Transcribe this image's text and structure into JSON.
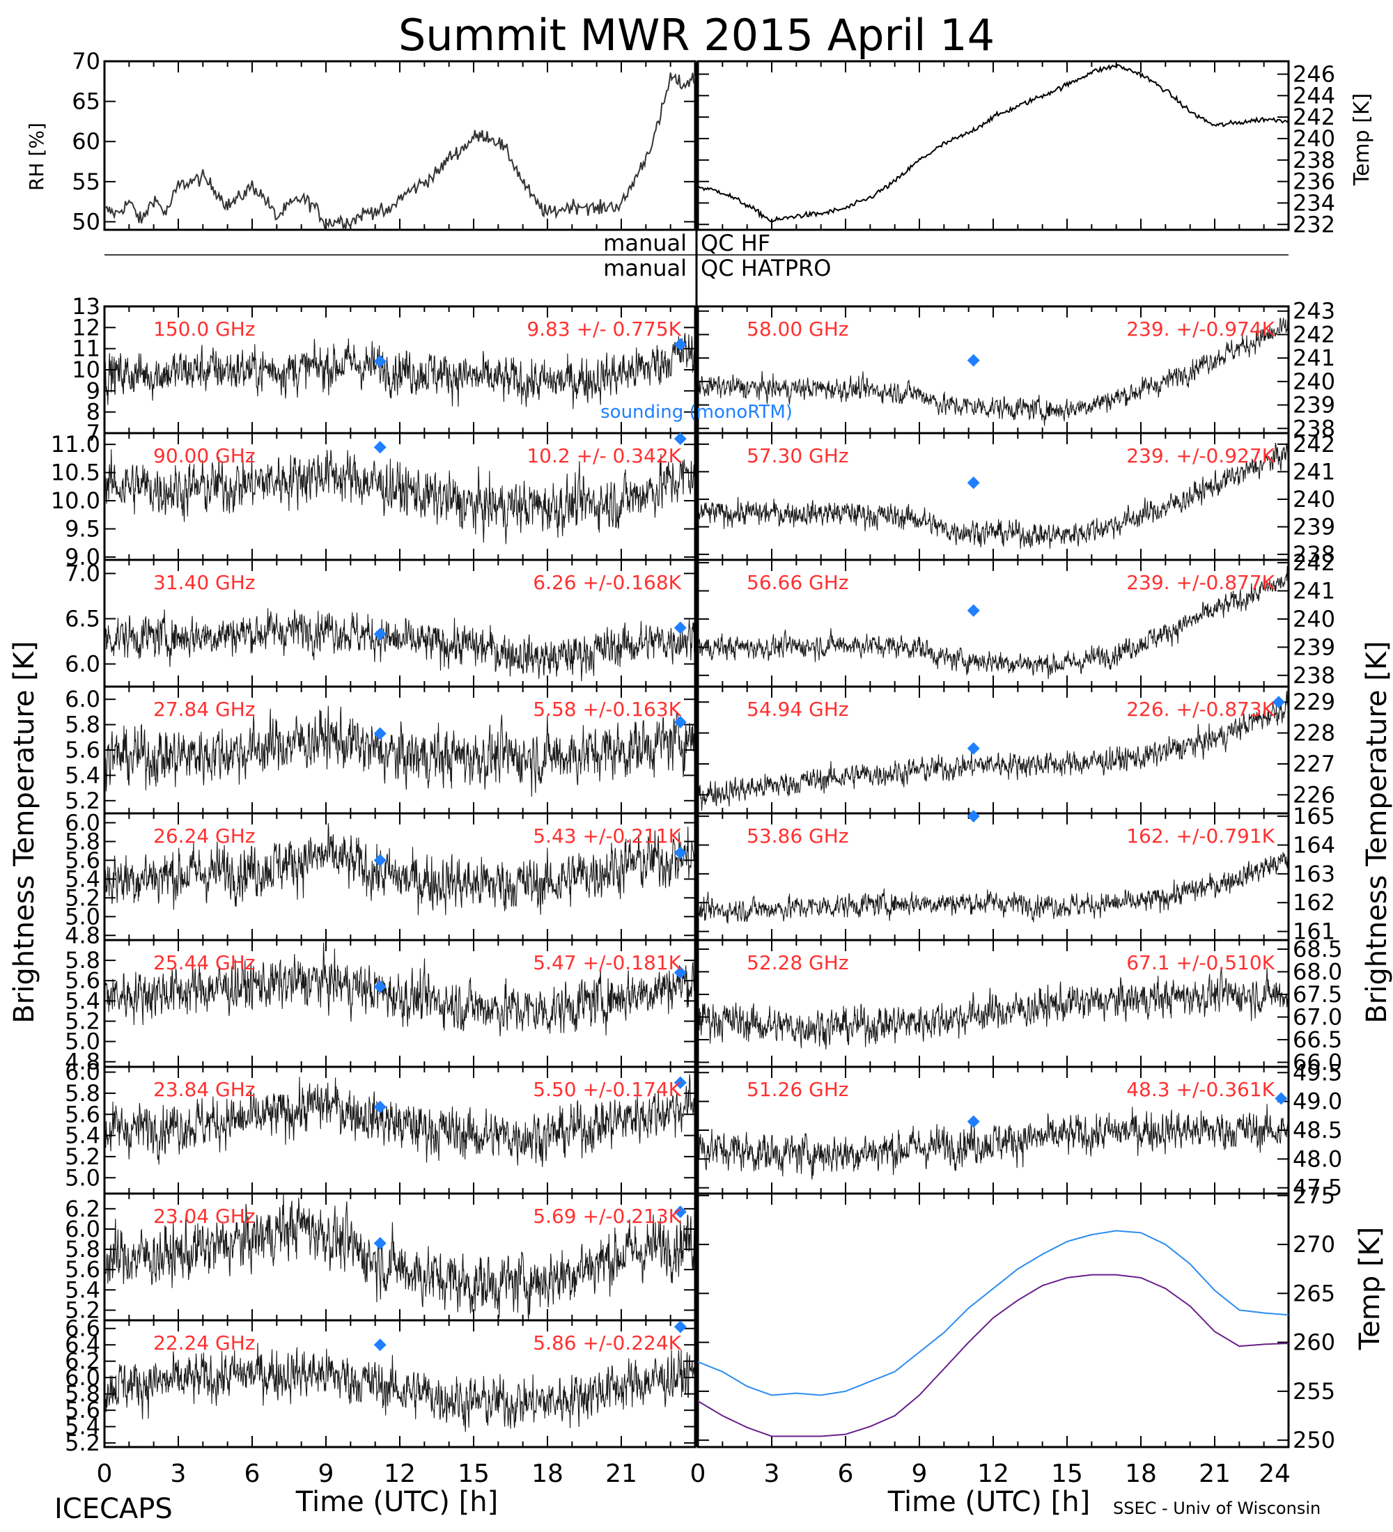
{
  "title": "Summit MWR 2015 April 14",
  "footer": {
    "left": "ICECAPS",
    "right": "SSEC - Univ of Wisconsin"
  },
  "colors": {
    "axes": "#000000",
    "annotation": "#ff3030",
    "sounding": "#1f7fff",
    "blackbody_hatpro": "#2a8cf0",
    "blackbody_hf": "#6a1f8a"
  },
  "qc": {
    "line1_left": "manual",
    "line1_right": "QC HF",
    "line2_left": "manual",
    "line2_right": "QC HATPRO"
  },
  "labels": {
    "rh_axis": "RH [%]",
    "temp_axis": "Temp [K]",
    "tb_axis_left": "Brightness Temperature [K]",
    "tb_axis_right": "Brightness Temperature [K]",
    "bb_axis": "Temp [K]",
    "time_axis_left": "Time (UTC) [h]",
    "time_axis_right": "Time (UTC) [h]",
    "sounding_legend": "sounding (monoRTM)"
  },
  "chart_data": [
    {
      "id": "rh",
      "type": "line",
      "ylabel": "RH [%]",
      "xlim": [
        0,
        24
      ],
      "ylim": [
        49,
        70
      ],
      "yticks": [
        "50",
        "55",
        "60",
        "65",
        "70"
      ],
      "x": [
        0,
        0.5,
        1,
        1.5,
        2,
        2.5,
        3,
        3.5,
        4,
        4.5,
        5,
        5.5,
        6,
        6.5,
        7,
        7.5,
        8,
        8.5,
        9,
        9.5,
        10,
        10.5,
        11,
        11.5,
        12,
        12.5,
        13,
        13.5,
        14,
        14.5,
        15,
        15.5,
        16,
        16.5,
        17,
        17.5,
        18,
        18.5,
        19,
        19.5,
        20,
        20.5,
        21,
        21.5,
        22,
        22.5,
        23,
        23.5,
        24
      ],
      "y": [
        51.5,
        51,
        52.5,
        50,
        53,
        51,
        54.5,
        55,
        55.5,
        54,
        52,
        53,
        54.5,
        53,
        50.5,
        52,
        53,
        52,
        49.8,
        50.2,
        50,
        51,
        51.5,
        51,
        53,
        54,
        55,
        56,
        58,
        59,
        60.5,
        60.8,
        60,
        58,
        55,
        52.5,
        51,
        51.5,
        52,
        52,
        51.5,
        52,
        52,
        55,
        58,
        62,
        68,
        67,
        68
      ]
    },
    {
      "id": "temp",
      "type": "line",
      "ylabel": "Temp [K]",
      "xlim": [
        0,
        24
      ],
      "ylim": [
        231.5,
        247.2
      ],
      "yticks": [
        "232",
        "234",
        "236",
        "238",
        "240",
        "242",
        "244",
        "246"
      ],
      "x": [
        0,
        1,
        2,
        3,
        4,
        5,
        6,
        7,
        8,
        9,
        10,
        11,
        12,
        13,
        14,
        15,
        16,
        17,
        18,
        19,
        20,
        21,
        22,
        23,
        24
      ],
      "y": [
        235.5,
        235,
        233.8,
        232.3,
        232.8,
        233,
        233.5,
        234.5,
        236,
        238,
        239.5,
        240.5,
        242,
        243,
        244,
        245,
        246.2,
        246.8,
        246,
        244.5,
        242.5,
        241.2,
        241.5,
        241.8,
        241.7
      ]
    },
    {
      "id": "150.0",
      "type": "scatter",
      "freq": "150.0 GHz",
      "stat": "9.83 +/- 0.775K",
      "ylim": [
        7,
        13
      ],
      "yticks": [
        "7",
        "8",
        "9",
        "10",
        "11",
        "12",
        "13"
      ],
      "x": [
        0,
        2,
        4,
        6,
        8,
        10,
        12,
        14,
        16,
        18,
        20,
        22,
        23.5
      ],
      "y": [
        9.8,
        9.8,
        10,
        10,
        10,
        10.3,
        10,
        9.8,
        9.5,
        9.4,
        9.6,
        10.1,
        10.8
      ],
      "noise": 0.775,
      "sounding": [
        [
          11.2,
          10.4
        ],
        [
          23.4,
          11.2
        ]
      ]
    },
    {
      "id": "90.00",
      "type": "scatter",
      "freq": "90.00 GHz",
      "stat": "10.2 +/- 0.342K",
      "ylim": [
        8.95,
        11.2
      ],
      "yticks": [
        "9.0",
        "9.5",
        "10.0",
        "10.5",
        "11.0"
      ],
      "x": [
        0,
        3,
        6,
        9,
        12,
        15,
        18,
        21,
        24
      ],
      "y": [
        10.3,
        10.2,
        10.3,
        10.5,
        10.2,
        9.9,
        9.9,
        10,
        10.5
      ],
      "noise": 0.342,
      "sounding": [
        [
          11.2,
          10.95
        ],
        [
          23.4,
          11.1
        ]
      ]
    },
    {
      "id": "31.40",
      "type": "scatter",
      "freq": "31.40 GHz",
      "stat": "6.26 +/-0.168K",
      "ylim": [
        5.75,
        7.15
      ],
      "yticks": [
        "6.0",
        "6.5",
        "7.0"
      ],
      "x": [
        0,
        3,
        6,
        9,
        12,
        15,
        18,
        21,
        24
      ],
      "y": [
        6.3,
        6.3,
        6.35,
        6.4,
        6.25,
        6.2,
        6.05,
        6.2,
        6.3
      ],
      "noise": 0.168,
      "sounding": [
        [
          11.2,
          6.33
        ],
        [
          23.4,
          6.4
        ]
      ]
    },
    {
      "id": "27.84",
      "type": "scatter",
      "freq": "27.84 GHz",
      "stat": "5.58 +/-0.163K",
      "ylim": [
        5.1,
        6.1
      ],
      "yticks": [
        "5.2",
        "5.4",
        "5.6",
        "5.8",
        "6.0"
      ],
      "x": [
        0,
        3,
        6,
        9,
        12,
        15,
        18,
        21,
        24
      ],
      "y": [
        5.55,
        5.55,
        5.6,
        5.7,
        5.55,
        5.55,
        5.55,
        5.6,
        5.7
      ],
      "noise": 0.163,
      "sounding": [
        [
          11.2,
          5.73
        ],
        [
          23.4,
          5.82
        ]
      ]
    },
    {
      "id": "26.24",
      "type": "scatter",
      "freq": "26.24 GHz",
      "stat": "5.43 +/-0.211K",
      "ylim": [
        4.75,
        6.1
      ],
      "yticks": [
        "4.8",
        "5.0",
        "5.2",
        "5.4",
        "5.6",
        "5.8",
        "6.0"
      ],
      "x": [
        0,
        3,
        6,
        9,
        12,
        15,
        18,
        21,
        24
      ],
      "y": [
        5.4,
        5.45,
        5.5,
        5.65,
        5.4,
        5.35,
        5.35,
        5.55,
        5.65
      ],
      "noise": 0.211,
      "sounding": [
        [
          11.2,
          5.6
        ],
        [
          23.4,
          5.68
        ]
      ]
    },
    {
      "id": "25.44",
      "type": "scatter",
      "freq": "25.44 GHz",
      "stat": "5.47 +/-0.181K",
      "ylim": [
        4.75,
        6.0
      ],
      "yticks": [
        "4.8",
        "5.0",
        "5.2",
        "5.4",
        "5.6",
        "5.8"
      ],
      "x": [
        0,
        3,
        6,
        9,
        12,
        15,
        18,
        21,
        24
      ],
      "y": [
        5.45,
        5.5,
        5.55,
        5.6,
        5.45,
        5.35,
        5.3,
        5.45,
        5.6
      ],
      "noise": 0.181,
      "sounding": [
        [
          11.2,
          5.54
        ],
        [
          23.4,
          5.68
        ]
      ]
    },
    {
      "id": "23.84",
      "type": "scatter",
      "freq": "23.84 GHz",
      "stat": "5.50 +/-0.174K",
      "ylim": [
        4.85,
        6.05
      ],
      "yticks": [
        "5.0",
        "5.2",
        "5.4",
        "5.6",
        "5.8",
        "6.0"
      ],
      "x": [
        0,
        3,
        6,
        9,
        12,
        15,
        18,
        21,
        24
      ],
      "y": [
        5.45,
        5.5,
        5.55,
        5.7,
        5.5,
        5.4,
        5.4,
        5.55,
        5.7
      ],
      "noise": 0.174,
      "sounding": [
        [
          11.2,
          5.67
        ],
        [
          23.4,
          5.9
        ]
      ]
    },
    {
      "id": "23.04",
      "type": "scatter",
      "freq": "23.04 GHz",
      "stat": "5.69 +/-0.213K",
      "ylim": [
        5.1,
        6.35
      ],
      "yticks": [
        "5.2",
        "5.4",
        "5.6",
        "5.8",
        "6.0",
        "6.2"
      ],
      "x": [
        0,
        3,
        6,
        8,
        9,
        11,
        13,
        15,
        18,
        21,
        24
      ],
      "y": [
        5.7,
        5.75,
        5.9,
        6.05,
        5.95,
        5.7,
        5.55,
        5.45,
        5.5,
        5.75,
        5.9
      ],
      "noise": 0.213,
      "sounding": [
        [
          11.2,
          5.86
        ],
        [
          23.4,
          6.17
        ]
      ]
    },
    {
      "id": "22.24",
      "type": "scatter",
      "freq": "22.24 GHz",
      "stat": "5.86 +/-0.224K",
      "ylim": [
        5.15,
        6.7
      ],
      "yticks": [
        "5.2",
        "5.4",
        "5.6",
        "5.8",
        "6.0",
        "6.2",
        "6.4",
        "6.6"
      ],
      "x": [
        0,
        3,
        6,
        9,
        12,
        15,
        18,
        21,
        24
      ],
      "y": [
        5.9,
        5.95,
        6.05,
        6.05,
        5.85,
        5.7,
        5.7,
        5.9,
        6.05
      ],
      "noise": 0.224,
      "sounding": [
        [
          11.2,
          6.4
        ],
        [
          23.4,
          6.62
        ]
      ]
    },
    {
      "id": "58.00",
      "type": "scatter",
      "freq": "58.00 GHz",
      "stat": "239. +/-0.974K",
      "ylim": [
        237.8,
        243.2
      ],
      "yticks": [
        "238",
        "239",
        "240",
        "241",
        "242",
        "243"
      ],
      "x": [
        0,
        3,
        6,
        9,
        10,
        12,
        14,
        15,
        17,
        19,
        21,
        24
      ],
      "y": [
        239.8,
        239.7,
        239.7,
        239.5,
        239,
        238.9,
        238.8,
        238.8,
        239.3,
        240,
        241,
        242.3
      ],
      "noise": 0.35,
      "sounding": [
        [
          11.2,
          240.9
        ]
      ]
    },
    {
      "id": "57.30",
      "type": "scatter",
      "freq": "57.30 GHz",
      "stat": "239. +/-0.927K",
      "ylim": [
        237.8,
        242.4
      ],
      "yticks": [
        "238",
        "239",
        "240",
        "241",
        "242"
      ],
      "x": [
        0,
        3,
        6,
        9,
        10,
        12,
        14,
        15,
        17,
        19,
        21,
        24
      ],
      "y": [
        239.5,
        239.5,
        239.5,
        239.3,
        238.9,
        238.8,
        238.7,
        238.7,
        239.1,
        239.7,
        240.5,
        241.7
      ],
      "noise": 0.33,
      "sounding": [
        [
          11.2,
          240.6
        ]
      ]
    },
    {
      "id": "56.66",
      "type": "scatter",
      "freq": "56.66 GHz",
      "stat": "239. +/-0.877K",
      "ylim": [
        237.6,
        242.1
      ],
      "yticks": [
        "238",
        "239",
        "240",
        "241",
        "242"
      ],
      "x": [
        0,
        3,
        6,
        9,
        10,
        12,
        14,
        15,
        17,
        19,
        21,
        24
      ],
      "y": [
        239,
        239,
        239.1,
        239,
        238.6,
        238.5,
        238.4,
        238.4,
        238.8,
        239.5,
        240.3,
        241.4
      ],
      "noise": 0.3,
      "sounding": [
        [
          11.2,
          240.3
        ]
      ]
    },
    {
      "id": "54.94",
      "type": "scatter",
      "freq": "54.94 GHz",
      "stat": "226. +/-0.873K",
      "ylim": [
        225.4,
        229.5
      ],
      "yticks": [
        "226",
        "227",
        "228",
        "229"
      ],
      "x": [
        0,
        3,
        6,
        9,
        12,
        15,
        18,
        21,
        24
      ],
      "y": [
        226,
        226.3,
        226.6,
        226.8,
        227,
        227,
        227.2,
        227.8,
        228.9
      ],
      "noise": 0.3,
      "sounding": [
        [
          11.2,
          227.5
        ],
        [
          23.6,
          229
        ]
      ]
    },
    {
      "id": "53.86",
      "type": "scatter",
      "freq": "53.86 GHz",
      "stat": "162. +/-0.791K",
      "ylim": [
        160.7,
        165.1
      ],
      "yticks": [
        "161",
        "162",
        "163",
        "164",
        "165"
      ],
      "x": [
        0,
        3,
        6,
        9,
        12,
        15,
        18,
        21,
        24
      ],
      "y": [
        161.7,
        161.8,
        161.9,
        162,
        162,
        161.9,
        162,
        162.6,
        163.5
      ],
      "noise": 0.3,
      "sounding": [
        [
          11.2,
          165
        ]
      ]
    },
    {
      "id": "52.28",
      "type": "scatter",
      "freq": "52.28 GHz",
      "stat": "67.1 +/-0.510K",
      "ylim": [
        65.9,
        68.7
      ],
      "yticks": [
        "66.0",
        "66.5",
        "67.0",
        "67.5",
        "68.0",
        "68.5"
      ],
      "x": [
        0,
        3,
        6,
        9,
        12,
        15,
        18,
        21,
        24
      ],
      "y": [
        67,
        66.8,
        66.8,
        66.9,
        67.1,
        67.3,
        67.4,
        67.5,
        67.5
      ],
      "noise": 0.3,
      "sounding": []
    },
    {
      "id": "51.26",
      "type": "scatter",
      "freq": "51.26 GHz",
      "stat": "48.3 +/-0.361K",
      "ylim": [
        47.4,
        49.6
      ],
      "yticks": [
        "47.5",
        "48.0",
        "48.5",
        "49.0",
        "49.5"
      ],
      "x": [
        0,
        3,
        6,
        9,
        12,
        15,
        18,
        21,
        24
      ],
      "y": [
        48.2,
        48.1,
        48.1,
        48.2,
        48.3,
        48.4,
        48.5,
        48.5,
        48.5
      ],
      "noise": 0.25,
      "sounding": [
        [
          11.2,
          48.65
        ],
        [
          23.7,
          49.05
        ]
      ]
    },
    {
      "id": "blackbody",
      "type": "line",
      "ylabel": "Temp [K]",
      "xlim": [
        0,
        24
      ],
      "ylim": [
        249.3,
        275.2
      ],
      "yticks": [
        "250",
        "255",
        "260",
        "265",
        "270",
        "275"
      ],
      "series": [
        {
          "name": "Blackbody HATPRO",
          "x": [
            0,
            1,
            2,
            3,
            4,
            5,
            6,
            7,
            8,
            9,
            10,
            11,
            12,
            13,
            14,
            15,
            16,
            17,
            18,
            19,
            20,
            21,
            22,
            23,
            24
          ],
          "y": [
            258,
            257,
            255.5,
            254.6,
            254.8,
            254.6,
            255,
            256,
            257,
            259,
            261,
            263.5,
            265.5,
            267.5,
            269,
            270.3,
            271,
            271.4,
            271.2,
            270,
            268,
            265.3,
            263.3,
            263,
            262.8
          ]
        },
        {
          "name": "Blackbody HF",
          "x": [
            0,
            1,
            2,
            3,
            4,
            5,
            6,
            7,
            8,
            9,
            10,
            11,
            12,
            13,
            14,
            15,
            16,
            17,
            18,
            19,
            20,
            21,
            22,
            23,
            24
          ],
          "y": [
            254,
            252.5,
            251.3,
            250.4,
            250.4,
            250.4,
            250.6,
            251.4,
            252.5,
            254.6,
            257.3,
            260,
            262.5,
            264.3,
            265.8,
            266.6,
            266.9,
            266.9,
            266.6,
            265.5,
            263.7,
            261.1,
            259.6,
            259.8,
            259.9
          ]
        }
      ]
    }
  ],
  "xaxis": {
    "ticks_left": [
      "0",
      "3",
      "6",
      "9",
      "12",
      "15",
      "18",
      "21"
    ],
    "ticks_right": [
      "0",
      "3",
      "6",
      "9",
      "12",
      "15",
      "18",
      "21",
      "24"
    ]
  }
}
